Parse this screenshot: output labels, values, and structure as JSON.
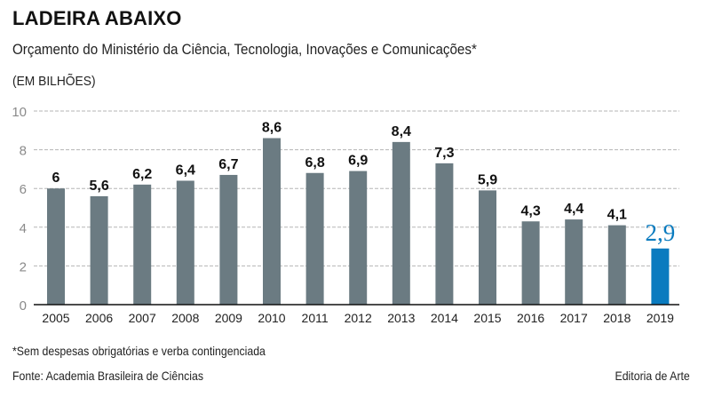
{
  "header": {
    "title": "LADEIRA ABAIXO",
    "subtitle": "Orçamento do Ministério da Ciência, Tecnologia, Inovações e Comunicações*",
    "unit": "(EM BILHÕES)"
  },
  "footer": {
    "note": "*Sem despesas obrigatórias e verba contingenciada",
    "source": "Fonte: Academia Brasileira de Ciências",
    "credit": "Editoria de Arte"
  },
  "colors": {
    "bar": "#6b7b82",
    "highlight": "#0a7bbf",
    "grid": "#b5b5b5",
    "axis": "#111111",
    "tick": "#8a8a8a"
  },
  "chart_data": {
    "type": "bar",
    "title": "LADEIRA ABAIXO",
    "subtitle": "Orçamento do Ministério da Ciência, Tecnologia, Inovações e Comunicações*",
    "xlabel": "",
    "ylabel": "(EM BILHÕES)",
    "ylim": [
      0,
      10
    ],
    "yticks": [
      0,
      2,
      4,
      6,
      8,
      10
    ],
    "grid": true,
    "categories": [
      "2005",
      "2006",
      "2007",
      "2008",
      "2009",
      "2010",
      "2011",
      "2012",
      "2013",
      "2014",
      "2015",
      "2016",
      "2017",
      "2018",
      "2019"
    ],
    "values": [
      6,
      5.6,
      6.2,
      6.4,
      6.7,
      8.6,
      6.8,
      6.9,
      8.4,
      7.3,
      5.9,
      4.3,
      4.4,
      4.1,
      2.9
    ],
    "labels": [
      "6",
      "5,6",
      "6,2",
      "6,4",
      "6,7",
      "8,6",
      "6,8",
      "6,9",
      "8,4",
      "7,3",
      "5,9",
      "4,3",
      "4,4",
      "4,1",
      "2,9"
    ],
    "highlight_index": 14
  }
}
